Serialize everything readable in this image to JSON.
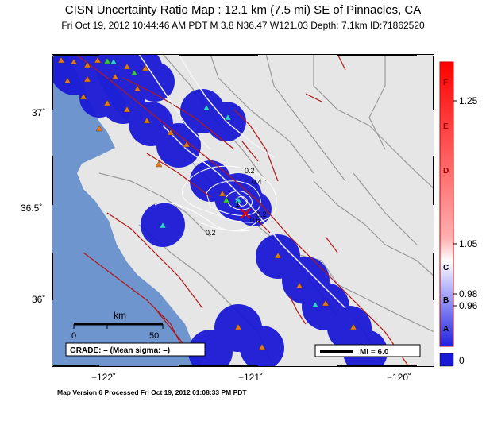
{
  "header": {
    "title": "CISN Uncertainty Ratio Map : 12.1 km (7.5 mi) SE of Pinnacles, CA",
    "subtitle": "Fri Oct 19, 2012 10:44:46 AM PDT   M 3.8   N36.47 W121.03   Depth: 7.1km   ID:71862520"
  },
  "axes": {
    "lat_labels": [
      "37˚",
      "36.5˚",
      "36˚"
    ],
    "lon_labels": [
      "−122˚",
      "−121˚",
      "−120˚"
    ]
  },
  "contour_labels": [
    "0.2",
    "0.4",
    "0.2",
    "1",
    "0.6",
    "0.2"
  ],
  "scalebar": {
    "title": "km",
    "ticks": [
      "0",
      "50"
    ]
  },
  "grade": {
    "text": "GRADE: – (Mean sigma: –)"
  },
  "mi_legend": {
    "text": "MI = 6.0"
  },
  "colorbar": {
    "letters": [
      "F",
      "E",
      "D",
      "C",
      "B",
      "A"
    ],
    "values": [
      "1.25",
      "1.05",
      "0.98",
      "0.96"
    ],
    "zero_label": "0"
  },
  "footer": {
    "text": "Map Version 6 Processed Fri Oct 19, 2012 01:08:33 PM PDT"
  },
  "colors": {
    "ocean": "#6f95cf",
    "land": "#e6e6e6",
    "uncertainty_blue": "#1a1ad6",
    "fault": "#b01818",
    "station_triangle": "#e07a1a",
    "station_cyan": "#30d0d8",
    "station_green": "#3cc83c",
    "contour": "#ffffff",
    "colorbar_frame": "#cc0000"
  }
}
